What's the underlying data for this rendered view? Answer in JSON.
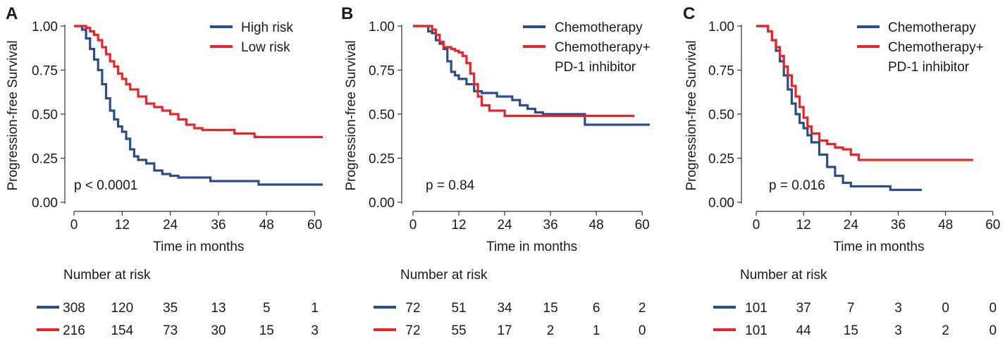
{
  "chart_data": [
    {
      "type": "line",
      "panel_label": "A",
      "title": "",
      "xlabel": "Time in months",
      "ylabel": "Progression-free Survival",
      "xlim": [
        0,
        62
      ],
      "ylim": [
        0,
        1
      ],
      "xticks": [
        0,
        12,
        24,
        36,
        48,
        60
      ],
      "yticks": [
        0,
        0.25,
        0.5,
        0.75,
        1.0
      ],
      "xtick_labels": [
        "0",
        "12",
        "24",
        "36",
        "48",
        "60"
      ],
      "ytick_labels": [
        "0.00",
        "0.25",
        "0.50",
        "0.75",
        "1.00"
      ],
      "pvalue": "p < 0.0001",
      "series": [
        {
          "name": "High risk",
          "color": "#2a4e8c",
          "x": [
            0,
            1,
            2,
            3,
            4,
            5,
            6,
            7,
            8,
            9,
            10,
            11,
            12,
            13,
            14,
            15,
            16,
            18,
            20,
            22,
            24,
            26,
            28,
            30,
            34,
            36,
            40,
            46,
            62
          ],
          "y": [
            1.0,
            1.0,
            0.98,
            0.93,
            0.87,
            0.81,
            0.75,
            0.67,
            0.59,
            0.52,
            0.47,
            0.43,
            0.4,
            0.36,
            0.3,
            0.26,
            0.24,
            0.22,
            0.18,
            0.16,
            0.15,
            0.14,
            0.14,
            0.14,
            0.12,
            0.12,
            0.12,
            0.1,
            0.1
          ]
        },
        {
          "name": "Low risk",
          "color": "#e8262a",
          "x": [
            0,
            1,
            2,
            3,
            4,
            5,
            6,
            7,
            8,
            9,
            10,
            11,
            12,
            13,
            14,
            16,
            18,
            20,
            22,
            24,
            26,
            28,
            30,
            32,
            34,
            36,
            40,
            45,
            62
          ],
          "y": [
            1.0,
            1.0,
            1.0,
            0.99,
            0.97,
            0.95,
            0.92,
            0.88,
            0.84,
            0.8,
            0.77,
            0.73,
            0.7,
            0.67,
            0.64,
            0.6,
            0.56,
            0.54,
            0.52,
            0.5,
            0.47,
            0.44,
            0.42,
            0.41,
            0.41,
            0.41,
            0.39,
            0.37,
            0.37
          ]
        }
      ],
      "risk_table": {
        "title": "Number at risk",
        "rows": [
          {
            "color": "#2a4e8c",
            "values": [
              "308",
              "120",
              "35",
              "13",
              "5",
              "1"
            ]
          },
          {
            "color": "#e8262a",
            "values": [
              "216",
              "154",
              "73",
              "30",
              "15",
              "3"
            ]
          }
        ]
      }
    },
    {
      "type": "line",
      "panel_label": "B",
      "title": "",
      "xlabel": "Time in months",
      "ylabel": "Progression-free Survival",
      "xlim": [
        0,
        62
      ],
      "ylim": [
        0,
        1
      ],
      "xticks": [
        0,
        12,
        24,
        36,
        48,
        60
      ],
      "yticks": [
        0,
        0.25,
        0.5,
        0.75,
        1.0
      ],
      "xtick_labels": [
        "0",
        "12",
        "24",
        "36",
        "48",
        "60"
      ],
      "ytick_labels": [
        "0.00",
        "0.25",
        "0.50",
        "0.75",
        "1.00"
      ],
      "pvalue": "p = 0.84",
      "series": [
        {
          "name": "Chemotherapy",
          "color": "#2a4e8c",
          "x": [
            0,
            3,
            4,
            5,
            6,
            7,
            8,
            9,
            10,
            11,
            12,
            14,
            16,
            18,
            20,
            22,
            26,
            28,
            30,
            32,
            34,
            45,
            62
          ],
          "y": [
            1.0,
            1.0,
            0.97,
            0.96,
            0.92,
            0.9,
            0.87,
            0.8,
            0.74,
            0.72,
            0.7,
            0.67,
            0.63,
            0.62,
            0.62,
            0.6,
            0.58,
            0.55,
            0.53,
            0.51,
            0.5,
            0.44,
            0.44
          ]
        },
        {
          "name": "Chemotherapy+ PD-1 inhibitor",
          "legend_lines": [
            "Chemotherapy+",
            "PD-1 inhibitor"
          ],
          "color": "#e8262a",
          "x": [
            0,
            3,
            5,
            6,
            7,
            8,
            9,
            10,
            11,
            12,
            13,
            14,
            15,
            16,
            17,
            18,
            20,
            24,
            58
          ],
          "y": [
            1.0,
            1.0,
            0.98,
            0.95,
            0.91,
            0.88,
            0.88,
            0.87,
            0.86,
            0.85,
            0.83,
            0.79,
            0.73,
            0.67,
            0.6,
            0.55,
            0.52,
            0.49,
            0.49
          ]
        }
      ],
      "risk_table": {
        "title": "Number at risk",
        "rows": [
          {
            "color": "#2a4e8c",
            "values": [
              "72",
              "51",
              "34",
              "15",
              "6",
              "2"
            ]
          },
          {
            "color": "#e8262a",
            "values": [
              "72",
              "55",
              "17",
              "2",
              "1",
              "0"
            ]
          }
        ]
      }
    },
    {
      "type": "line",
      "panel_label": "C",
      "title": "",
      "xlabel": "Time in months",
      "ylabel": "Progression-free Survival",
      "xlim": [
        0,
        62
      ],
      "ylim": [
        0,
        1
      ],
      "xticks": [
        0,
        12,
        24,
        36,
        48,
        60
      ],
      "yticks": [
        0,
        0.25,
        0.5,
        0.75,
        1.0
      ],
      "xtick_labels": [
        "0",
        "12",
        "24",
        "36",
        "48",
        "60"
      ],
      "ytick_labels": [
        "0.00",
        "0.25",
        "0.50",
        "0.75",
        "1.00"
      ],
      "pvalue": "p = 0.016",
      "series": [
        {
          "name": "Chemotherapy",
          "color": "#2a4e8c",
          "x": [
            0,
            2,
            3,
            4,
            5,
            6,
            7,
            8,
            9,
            10,
            11,
            12,
            13,
            14,
            16,
            18,
            20,
            22,
            24,
            26,
            30,
            34,
            42
          ],
          "y": [
            1.0,
            1.0,
            0.97,
            0.92,
            0.86,
            0.8,
            0.72,
            0.64,
            0.56,
            0.5,
            0.45,
            0.42,
            0.38,
            0.34,
            0.27,
            0.2,
            0.15,
            0.11,
            0.09,
            0.09,
            0.09,
            0.07,
            0.07
          ]
        },
        {
          "name": "Chemotherapy+ PD-1 inhibitor",
          "legend_lines": [
            "Chemotherapy+",
            "PD-1 inhibitor"
          ],
          "color": "#e8262a",
          "x": [
            0,
            2,
            3,
            4,
            5,
            6,
            7,
            8,
            9,
            10,
            11,
            12,
            13,
            14,
            16,
            18,
            20,
            22,
            24,
            26,
            30,
            35,
            55
          ],
          "y": [
            1.0,
            1.0,
            0.97,
            0.92,
            0.88,
            0.83,
            0.77,
            0.72,
            0.66,
            0.6,
            0.54,
            0.48,
            0.43,
            0.39,
            0.35,
            0.33,
            0.31,
            0.3,
            0.27,
            0.24,
            0.24,
            0.24,
            0.24
          ]
        }
      ],
      "risk_table": {
        "title": "Number at risk",
        "rows": [
          {
            "color": "#2a4e8c",
            "values": [
              "101",
              "37",
              "7",
              "3",
              "0",
              "0"
            ]
          },
          {
            "color": "#e8262a",
            "values": [
              "101",
              "44",
              "15",
              "3",
              "2",
              "0"
            ]
          }
        ]
      }
    }
  ]
}
